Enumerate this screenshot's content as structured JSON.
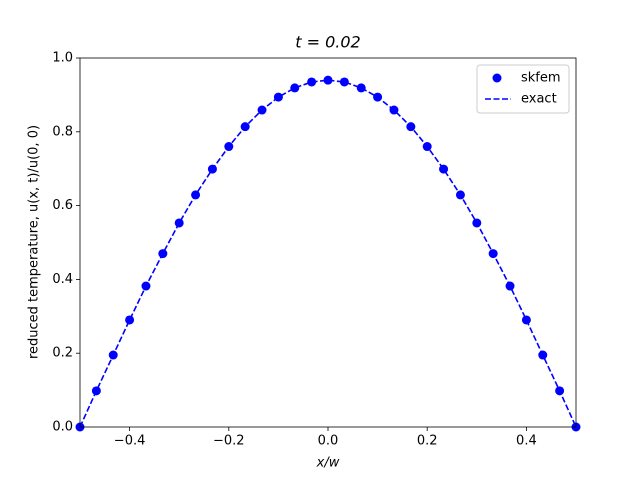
{
  "chart_data": {
    "type": "line",
    "title": "t = 0.02",
    "x_label": "x/w",
    "y_label": "reduced temperature, u(x, t)/u(0, 0)",
    "x": [
      -0.5,
      -0.467,
      -0.433,
      -0.4,
      -0.367,
      -0.333,
      -0.3,
      -0.267,
      -0.233,
      -0.2,
      -0.167,
      -0.133,
      -0.1,
      -0.067,
      -0.033,
      0,
      0.033,
      0.067,
      0.1,
      0.133,
      0.167,
      0.2,
      0.233,
      0.267,
      0.3,
      0.333,
      0.367,
      0.4,
      0.433,
      0.467,
      0.5
    ],
    "series": [
      {
        "name": "skfem",
        "color": "#0000ff",
        "marker": "o",
        "values": [
          0,
          0.098,
          0.195,
          0.29,
          0.382,
          0.47,
          0.553,
          0.629,
          0.699,
          0.76,
          0.814,
          0.859,
          0.894,
          0.919,
          0.935,
          0.94,
          0.935,
          0.919,
          0.894,
          0.859,
          0.814,
          0.76,
          0.699,
          0.629,
          0.553,
          0.47,
          0.382,
          0.29,
          0.195,
          0.098,
          0
        ]
      },
      {
        "name": "exact",
        "color": "#0000ff",
        "linestyle": "--",
        "values": [
          0,
          0.098,
          0.195,
          0.29,
          0.382,
          0.47,
          0.553,
          0.629,
          0.699,
          0.76,
          0.814,
          0.859,
          0.894,
          0.919,
          0.935,
          0.94,
          0.935,
          0.919,
          0.894,
          0.859,
          0.814,
          0.76,
          0.699,
          0.629,
          0.553,
          0.47,
          0.382,
          0.29,
          0.195,
          0.098,
          0
        ]
      }
    ],
    "xlim": [
      -0.5,
      0.5
    ],
    "xticks": [
      {
        "value": -0.4,
        "label": "−0.4"
      },
      {
        "value": -0.2,
        "label": "−0.2"
      },
      {
        "value": 0,
        "label": "0.0"
      },
      0.2,
      0.4
    ],
    "ylim": [
      0,
      1
    ],
    "yticks": [
      {
        "value": 0,
        "label": "0.0"
      },
      0.2,
      0.4,
      0.6,
      0.8,
      {
        "value": 1,
        "label": "1.0"
      }
    ],
    "legend": "upper right"
  }
}
